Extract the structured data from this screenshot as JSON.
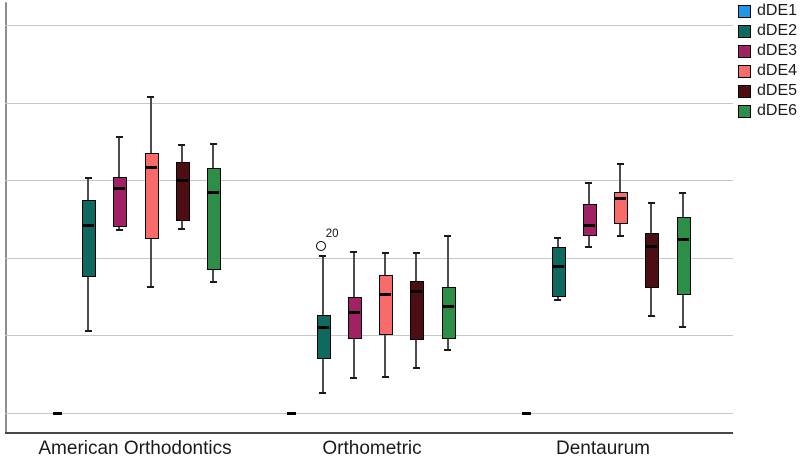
{
  "chart_data": {
    "type": "boxplot",
    "title": "",
    "xlabel": "",
    "ylabel": "",
    "categories": [
      "American Orthodontics",
      "Orthometric",
      "Dentaurum"
    ],
    "series": [
      {
        "name": "dDE1",
        "color": "#1F97E8",
        "boxes": [
          {
            "low": 0,
            "q1": 0,
            "median": 0,
            "q3": 0,
            "high": 0
          },
          {
            "low": 0,
            "q1": 0,
            "median": 0,
            "q3": 0,
            "high": 0
          },
          {
            "low": 0,
            "q1": 0,
            "median": 0,
            "q3": 0,
            "high": 0
          }
        ]
      },
      {
        "name": "dDE2",
        "color": "#0E6A60",
        "boxes": [
          {
            "low": 1.06,
            "q1": 1.78,
            "median": 2.42,
            "q3": 2.74,
            "high": 3.03
          },
          {
            "low": 0.26,
            "q1": 0.72,
            "median": 1.1,
            "q3": 1.26,
            "high": 2.02
          },
          {
            "low": 1.46,
            "q1": 1.52,
            "median": 1.89,
            "q3": 2.14,
            "high": 2.25
          }
        ]
      },
      {
        "name": "dDE3",
        "color": "#A02264",
        "boxes": [
          {
            "low": 2.36,
            "q1": 2.42,
            "median": 2.89,
            "q3": 3.04,
            "high": 3.56
          },
          {
            "low": 0.45,
            "q1": 0.98,
            "median": 1.29,
            "q3": 1.49,
            "high": 2.07
          },
          {
            "low": 2.14,
            "q1": 2.31,
            "median": 2.41,
            "q3": 2.69,
            "high": 2.96
          }
        ]
      },
      {
        "name": "dDE4",
        "color": "#F96B6B",
        "boxes": [
          {
            "low": 1.62,
            "q1": 2.27,
            "median": 3.16,
            "q3": 3.35,
            "high": 4.07
          },
          {
            "low": 0.46,
            "q1": 1.03,
            "median": 1.53,
            "q3": 1.78,
            "high": 2.06
          },
          {
            "low": 2.28,
            "q1": 2.46,
            "median": 2.76,
            "q3": 2.85,
            "high": 3.21
          }
        ]
      },
      {
        "name": "dDE5",
        "color": "#4C0E12",
        "boxes": [
          {
            "low": 2.37,
            "q1": 2.5,
            "median": 2.99,
            "q3": 3.23,
            "high": 3.45
          },
          {
            "low": 0.58,
            "q1": 0.97,
            "median": 1.56,
            "q3": 1.7,
            "high": 2.06
          },
          {
            "low": 1.25,
            "q1": 1.64,
            "median": 2.14,
            "q3": 2.32,
            "high": 2.71
          }
        ]
      },
      {
        "name": "dDE6",
        "color": "#2D8E47",
        "boxes": [
          {
            "low": 1.69,
            "q1": 1.87,
            "median": 2.84,
            "q3": 3.16,
            "high": 3.47
          },
          {
            "low": 0.81,
            "q1": 0.98,
            "median": 1.37,
            "q3": 1.62,
            "high": 2.28
          },
          {
            "low": 1.11,
            "q1": 1.55,
            "median": 2.23,
            "q3": 2.53,
            "high": 2.84
          }
        ]
      }
    ],
    "outliers": [
      {
        "series": "dDE2",
        "category_index": 1,
        "value": 2.17,
        "label": "20"
      }
    ],
    "y_axis": {
      "tick_labels_visible": false,
      "gridline_units": [
        0,
        1,
        2,
        3,
        4,
        5
      ],
      "unit_note": "no numeric axis labels visible; values expressed in gridline units, bottom gridline = 0"
    },
    "layout_hints": {
      "grid": "horizontal",
      "legend_position": "top-right",
      "flat_box_note": "dDE1 appears as a flat dash at the baseline in all three groups"
    }
  }
}
